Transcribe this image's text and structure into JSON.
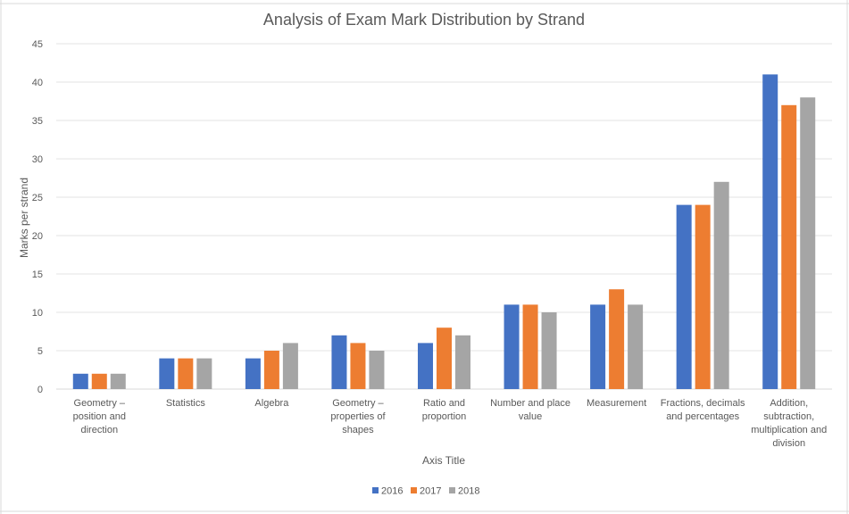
{
  "chart_data": {
    "type": "bar",
    "title": "Analysis of Exam Mark Distribution by Strand",
    "xlabel": "Axis Title",
    "ylabel": "Marks per strand",
    "ylim": [
      0,
      45
    ],
    "yticks": [
      0,
      5,
      10,
      15,
      20,
      25,
      30,
      35,
      40,
      45
    ],
    "grid": true,
    "legend_position": "bottom",
    "categories": [
      "Geometry – position and direction",
      "Statistics",
      "Algebra",
      "Geometry – properties of shapes",
      "Ratio and proportion",
      "Number and place value",
      "Measurement",
      "Fractions, decimals and percentages",
      "Addition, subtraction, multiplication and division"
    ],
    "category_lines": [
      [
        "Geometry –",
        "position and",
        "direction"
      ],
      [
        "Statistics"
      ],
      [
        "Algebra"
      ],
      [
        "Geometry –",
        "properties of",
        "shapes"
      ],
      [
        "Ratio and",
        "proportion"
      ],
      [
        "Number and place",
        "value"
      ],
      [
        "Measurement"
      ],
      [
        "Fractions, decimals",
        "and percentages"
      ],
      [
        "Addition,",
        "subtraction,",
        "multiplication and",
        "division"
      ]
    ],
    "series": [
      {
        "name": "2016",
        "color": "#4472c4",
        "values": [
          2,
          4,
          4,
          7,
          6,
          11,
          11,
          24,
          41
        ]
      },
      {
        "name": "2017",
        "color": "#ed7d31",
        "values": [
          2,
          4,
          5,
          6,
          8,
          11,
          13,
          24,
          37
        ]
      },
      {
        "name": "2018",
        "color": "#a5a5a5",
        "values": [
          2,
          4,
          6,
          5,
          7,
          10,
          11,
          27,
          38
        ]
      }
    ]
  }
}
